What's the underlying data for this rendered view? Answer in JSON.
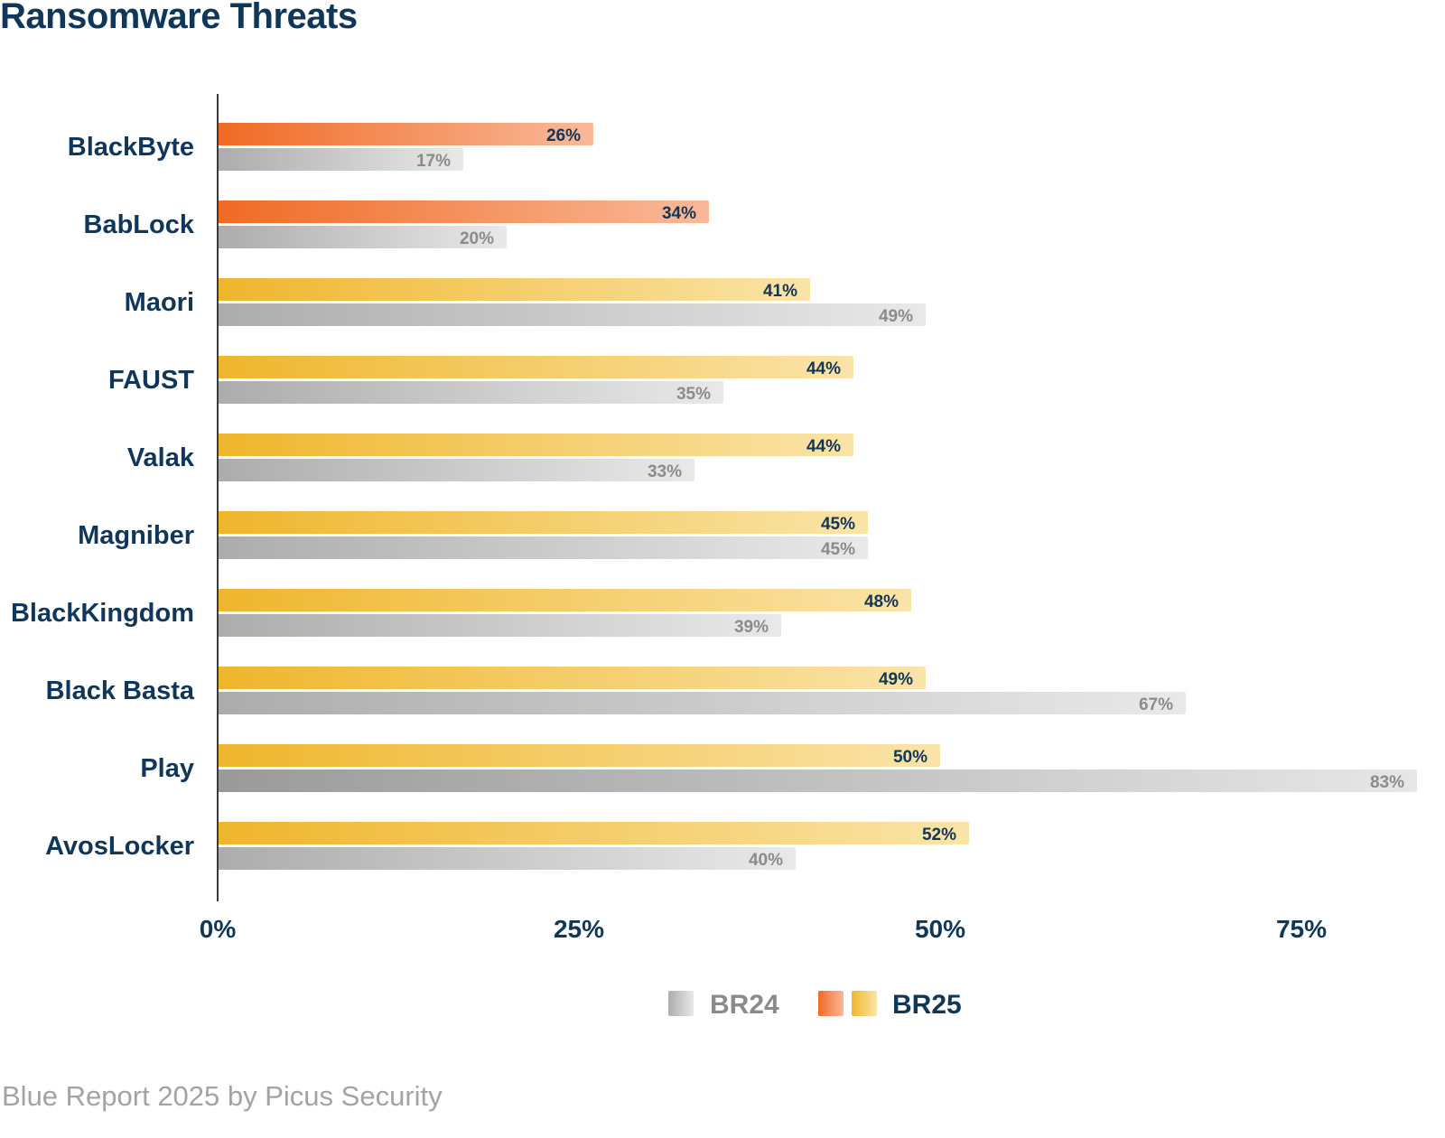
{
  "title": "Ransomware Threats",
  "footer": "Blue Report 2025 by Picus Security",
  "colors": {
    "title": "#10375a",
    "br25_orange": [
      "#f06a24",
      "#f9b99a"
    ],
    "br25_yellow": [
      "#efb62c",
      "#fae4a8"
    ],
    "br24_gray": [
      "#acacac",
      "#e9e9e9"
    ],
    "br24_label": "#8b8b8b",
    "br25_label": "#10375a"
  },
  "legend": {
    "position": "bottom-center",
    "br24": "BR24",
    "br25": "BR25"
  },
  "chart_data": {
    "type": "bar",
    "orientation": "horizontal",
    "categories": [
      "BlackByte",
      "BabLock",
      "Maori",
      "FAUST",
      "Valak",
      "Magniber",
      "BlackKingdom",
      "Black Basta",
      "Play",
      "AvosLocker"
    ],
    "series": [
      {
        "name": "BR25",
        "values": [
          26,
          34,
          41,
          44,
          44,
          45,
          48,
          49,
          50,
          52
        ],
        "labels": [
          "26%",
          "34%",
          "41%",
          "44%",
          "44%",
          "45%",
          "48%",
          "49%",
          "50%",
          "52%"
        ]
      },
      {
        "name": "BR24",
        "values": [
          17,
          20,
          49,
          35,
          33,
          45,
          39,
          67,
          83,
          40
        ],
        "labels": [
          "17%",
          "20%",
          "49%",
          "35%",
          "33%",
          "45%",
          "39%",
          "67%",
          "83%",
          "40%"
        ]
      }
    ],
    "x_ticks": [
      0,
      25,
      50,
      75
    ],
    "x_tick_labels": [
      "0%",
      "25%",
      "50%",
      "75%"
    ],
    "xlim": [
      0,
      83
    ],
    "grid": false
  }
}
